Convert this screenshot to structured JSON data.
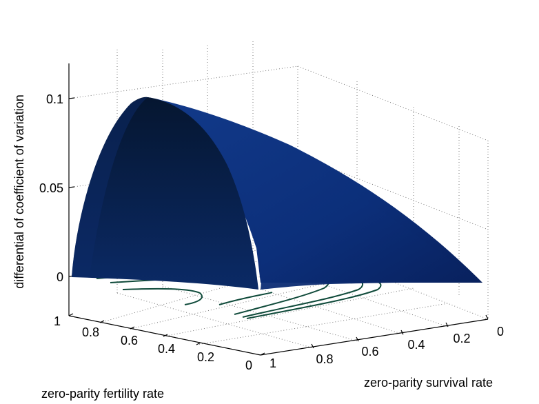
{
  "chart_data": {
    "type": "surface",
    "title": "",
    "zlabel": "differential of coefficient of variation",
    "xlabel": "zero-parity survival rate",
    "ylabel": "zero-parity fertility rate",
    "zlim": [
      0,
      0.12
    ],
    "xlim": [
      0,
      1
    ],
    "ylim": [
      0,
      1
    ],
    "z_ticks": [
      "0",
      "0.05",
      "0.1"
    ],
    "x_ticks": [
      "1",
      "0.8",
      "0.6",
      "0.4",
      "0.2",
      "0"
    ],
    "y_ticks": [
      "1",
      "0.8",
      "0.6",
      "0.4",
      "0.2",
      "0"
    ],
    "grid": true,
    "colormap": {
      "dark": "#061830",
      "mid": "#0c2a66",
      "light": "#1a4aa8"
    },
    "contour_color": "#0f4a3a",
    "peak": {
      "survival_rate": 1.0,
      "fertility_rate": 0.6,
      "value": 0.1
    },
    "contour_levels": 8
  }
}
